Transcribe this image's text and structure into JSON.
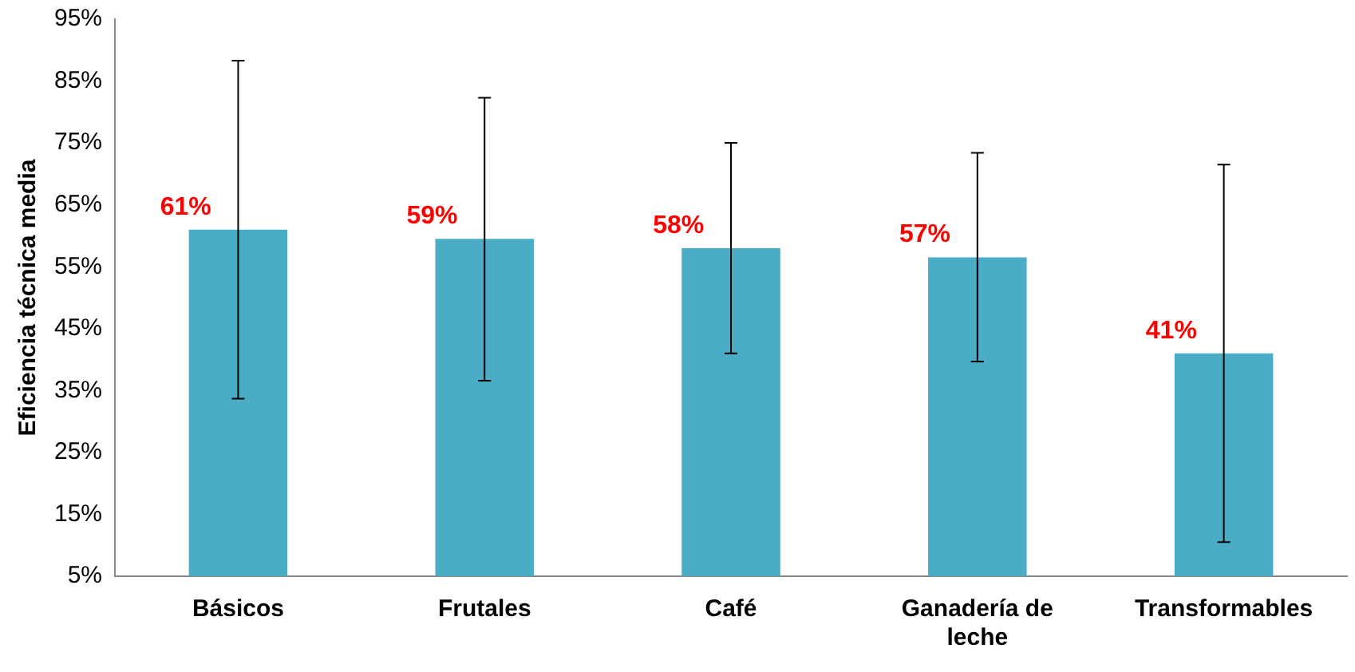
{
  "chart_data": {
    "type": "bar",
    "ylabel": "Eficiencia técnica media",
    "categories": [
      "Básicos",
      "Frutales",
      "Café",
      "Ganadería de leche",
      "Transformables"
    ],
    "values": [
      61,
      59.5,
      58,
      56.5,
      41
    ],
    "value_labels": [
      "61%",
      "59%",
      "58%",
      "57%",
      "41%"
    ],
    "errors": [
      [
        33.7,
        88.3
      ],
      [
        36.6,
        82.3
      ],
      [
        41,
        75
      ],
      [
        39.7,
        73.4
      ],
      [
        10.5,
        71.5
      ]
    ],
    "color": "#4bacc6",
    "ylim": [
      5,
      95
    ],
    "yticks": [
      {
        "value": 5,
        "label": "5%"
      },
      {
        "value": 15,
        "label": "15%"
      },
      {
        "value": 25,
        "label": "25%"
      },
      {
        "value": 35,
        "label": "35%"
      },
      {
        "value": 45,
        "label": "45%"
      },
      {
        "value": 55,
        "label": "55%"
      },
      {
        "value": 65,
        "label": "65%"
      },
      {
        "value": 75,
        "label": "75%"
      },
      {
        "value": 85,
        "label": "85%"
      },
      {
        "value": 95,
        "label": "95%"
      }
    ],
    "grid": false,
    "legend": false
  }
}
